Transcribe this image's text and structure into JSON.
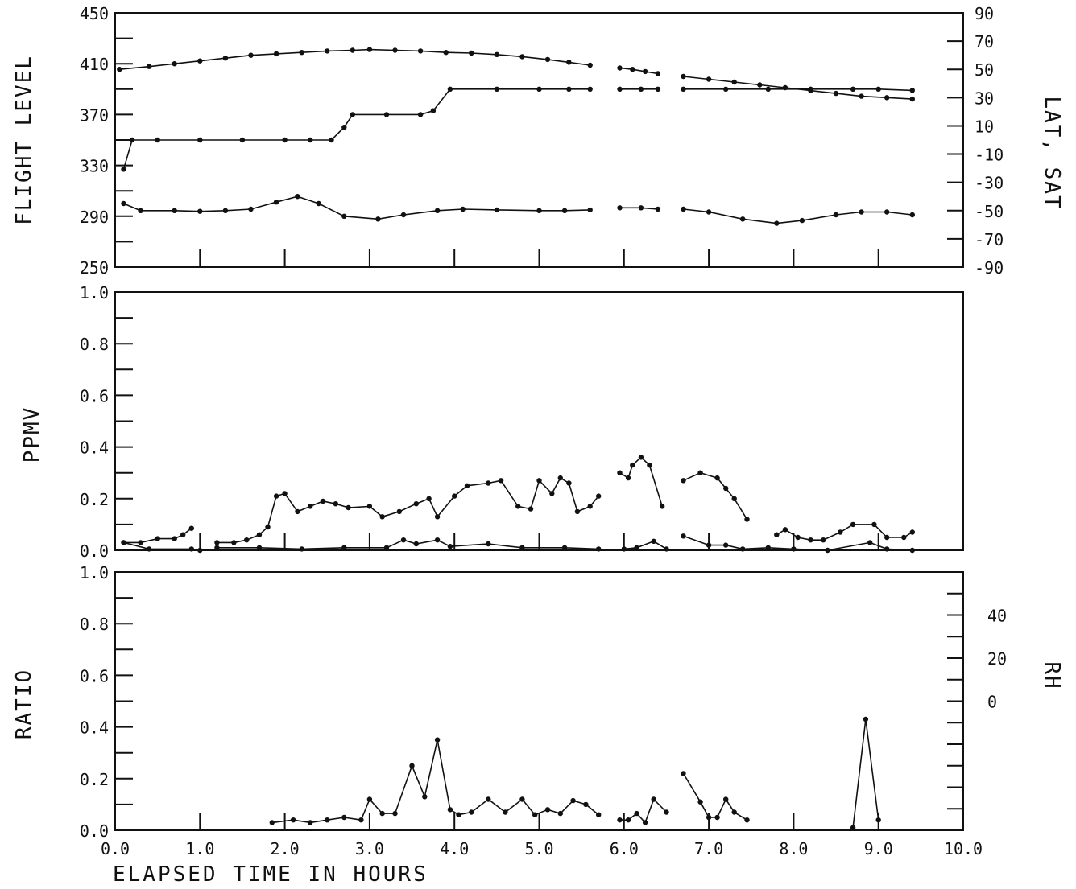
{
  "chart_data": [
    {
      "type": "line",
      "panel": "top",
      "ylabel": "FLIGHT LEVEL",
      "y2label": "LAT, SAT",
      "xlim": [
        0,
        10
      ],
      "ylim": [
        250,
        450
      ],
      "y2lim": [
        -90,
        90
      ],
      "yticks": [
        "250",
        "290",
        "330",
        "370",
        "410",
        "450"
      ],
      "y2ticks": [
        "-90",
        "-70",
        "-50",
        "-30",
        "-10",
        "10",
        "30",
        "50",
        "70",
        "90"
      ],
      "series": [
        {
          "axis": "y2",
          "segments": [
            [
              [
                0.05,
                50
              ],
              [
                0.4,
                52
              ],
              [
                0.7,
                54
              ],
              [
                1.0,
                56
              ],
              [
                1.3,
                58
              ],
              [
                1.6,
                60
              ],
              [
                1.9,
                61
              ],
              [
                2.2,
                62
              ],
              [
                2.5,
                63
              ],
              [
                2.8,
                63.5
              ],
              [
                3.0,
                64
              ],
              [
                3.3,
                63.5
              ],
              [
                3.6,
                63
              ],
              [
                3.9,
                62
              ],
              [
                4.2,
                61.5
              ],
              [
                4.5,
                60.5
              ],
              [
                4.8,
                59
              ],
              [
                5.1,
                57
              ],
              [
                5.35,
                55
              ],
              [
                5.6,
                53
              ]
            ],
            [
              [
                5.95,
                51
              ],
              [
                6.1,
                50
              ],
              [
                6.25,
                48.5
              ],
              [
                6.4,
                47
              ]
            ],
            [
              [
                6.7,
                45
              ],
              [
                7.0,
                43
              ],
              [
                7.3,
                41
              ],
              [
                7.6,
                39
              ],
              [
                7.9,
                37
              ],
              [
                8.2,
                35
              ],
              [
                8.5,
                33
              ],
              [
                8.8,
                31
              ],
              [
                9.1,
                30
              ],
              [
                9.4,
                29
              ]
            ]
          ]
        },
        {
          "axis": "y1",
          "segments": [
            [
              [
                0.1,
                327
              ],
              [
                0.2,
                350
              ],
              [
                0.5,
                350
              ],
              [
                1.0,
                350
              ],
              [
                1.5,
                350
              ],
              [
                2.0,
                350
              ],
              [
                2.3,
                350
              ],
              [
                2.55,
                350
              ],
              [
                2.7,
                360
              ],
              [
                2.8,
                370
              ],
              [
                3.2,
                370
              ],
              [
                3.6,
                370
              ],
              [
                3.75,
                373
              ],
              [
                3.95,
                390
              ],
              [
                4.5,
                390
              ],
              [
                5.0,
                390
              ],
              [
                5.35,
                390
              ],
              [
                5.6,
                390
              ]
            ],
            [
              [
                5.95,
                390
              ],
              [
                6.2,
                390
              ],
              [
                6.4,
                390
              ]
            ],
            [
              [
                6.7,
                390
              ],
              [
                7.2,
                390
              ],
              [
                7.7,
                390
              ],
              [
                8.2,
                390
              ],
              [
                8.7,
                390
              ],
              [
                9.0,
                390
              ],
              [
                9.4,
                389
              ]
            ]
          ]
        },
        {
          "axis": "y2",
          "segments": [
            [
              [
                0.1,
                -45
              ],
              [
                0.3,
                -50
              ],
              [
                0.7,
                -50
              ],
              [
                1.0,
                -50.5
              ],
              [
                1.3,
                -50
              ],
              [
                1.6,
                -49
              ],
              [
                1.9,
                -44
              ],
              [
                2.15,
                -40
              ],
              [
                2.4,
                -45
              ],
              [
                2.7,
                -54
              ],
              [
                3.1,
                -56
              ],
              [
                3.4,
                -53
              ],
              [
                3.8,
                -50
              ],
              [
                4.1,
                -49
              ],
              [
                4.5,
                -49.5
              ],
              [
                5.0,
                -50
              ],
              [
                5.3,
                -50
              ],
              [
                5.6,
                -49.5
              ]
            ],
            [
              [
                5.95,
                -48
              ],
              [
                6.2,
                -48
              ],
              [
                6.4,
                -49
              ]
            ],
            [
              [
                6.7,
                -49
              ],
              [
                7.0,
                -51
              ],
              [
                7.4,
                -56
              ],
              [
                7.8,
                -59
              ],
              [
                8.1,
                -57
              ],
              [
                8.5,
                -53
              ],
              [
                8.8,
                -51
              ],
              [
                9.1,
                -51
              ],
              [
                9.4,
                -53
              ]
            ]
          ]
        }
      ]
    },
    {
      "type": "line",
      "panel": "middle",
      "ylabel": "PPMV",
      "xlim": [
        0,
        10
      ],
      "ylim": [
        0,
        1
      ],
      "yticks": [
        "0.0",
        "0.2",
        "0.4",
        "0.6",
        "0.8",
        "1.0"
      ],
      "series": [
        {
          "segments": [
            [
              [
                0.1,
                0.03
              ],
              [
                0.3,
                0.03
              ],
              [
                0.5,
                0.045
              ],
              [
                0.7,
                0.045
              ],
              [
                0.8,
                0.06
              ],
              [
                0.9,
                0.085
              ]
            ],
            [
              [
                1.2,
                0.03
              ],
              [
                1.4,
                0.03
              ],
              [
                1.55,
                0.04
              ],
              [
                1.7,
                0.06
              ],
              [
                1.8,
                0.09
              ],
              [
                1.9,
                0.21
              ],
              [
                2.0,
                0.22
              ],
              [
                2.15,
                0.15
              ],
              [
                2.3,
                0.17
              ],
              [
                2.45,
                0.19
              ],
              [
                2.6,
                0.18
              ],
              [
                2.75,
                0.165
              ],
              [
                3.0,
                0.17
              ],
              [
                3.15,
                0.13
              ],
              [
                3.35,
                0.15
              ],
              [
                3.55,
                0.18
              ],
              [
                3.7,
                0.2
              ],
              [
                3.8,
                0.13
              ],
              [
                4.0,
                0.21
              ],
              [
                4.15,
                0.25
              ],
              [
                4.4,
                0.26
              ],
              [
                4.55,
                0.27
              ],
              [
                4.75,
                0.17
              ],
              [
                4.9,
                0.16
              ],
              [
                5.0,
                0.27
              ],
              [
                5.15,
                0.22
              ],
              [
                5.25,
                0.28
              ],
              [
                5.35,
                0.26
              ],
              [
                5.45,
                0.15
              ],
              [
                5.6,
                0.17
              ],
              [
                5.7,
                0.21
              ]
            ],
            [
              [
                5.95,
                0.3
              ],
              [
                6.05,
                0.28
              ],
              [
                6.1,
                0.33
              ],
              [
                6.2,
                0.36
              ],
              [
                6.3,
                0.33
              ],
              [
                6.45,
                0.17
              ]
            ],
            [
              [
                6.7,
                0.27
              ],
              [
                6.9,
                0.3
              ],
              [
                7.1,
                0.28
              ],
              [
                7.2,
                0.24
              ],
              [
                7.3,
                0.2
              ],
              [
                7.45,
                0.12
              ]
            ],
            [
              [
                7.8,
                0.06
              ],
              [
                7.9,
                0.08
              ],
              [
                8.05,
                0.05
              ],
              [
                8.2,
                0.04
              ],
              [
                8.35,
                0.04
              ],
              [
                8.55,
                0.07
              ],
              [
                8.7,
                0.1
              ],
              [
                8.95,
                0.1
              ],
              [
                9.1,
                0.05
              ],
              [
                9.3,
                0.05
              ],
              [
                9.4,
                0.07
              ]
            ]
          ]
        },
        {
          "segments": [
            [
              [
                0.1,
                0.03
              ],
              [
                0.4,
                0.005
              ],
              [
                0.9,
                0.005
              ],
              [
                1.0,
                0.0
              ]
            ],
            [
              [
                1.2,
                0.01
              ],
              [
                1.7,
                0.01
              ],
              [
                2.2,
                0.005
              ],
              [
                2.7,
                0.01
              ],
              [
                3.2,
                0.01
              ],
              [
                3.4,
                0.04
              ],
              [
                3.55,
                0.025
              ],
              [
                3.8,
                0.04
              ],
              [
                3.95,
                0.015
              ],
              [
                4.4,
                0.025
              ],
              [
                4.8,
                0.01
              ],
              [
                5.3,
                0.01
              ],
              [
                5.7,
                0.005
              ]
            ],
            [
              [
                6.0,
                0.005
              ],
              [
                6.15,
                0.01
              ],
              [
                6.35,
                0.035
              ],
              [
                6.5,
                0.005
              ]
            ],
            [
              [
                6.7,
                0.055
              ],
              [
                7.0,
                0.02
              ],
              [
                7.2,
                0.02
              ],
              [
                7.4,
                0.005
              ],
              [
                7.7,
                0.01
              ],
              [
                8.0,
                0.005
              ],
              [
                8.4,
                0.0
              ],
              [
                8.9,
                0.03
              ],
              [
                9.1,
                0.005
              ],
              [
                9.4,
                0.0
              ]
            ]
          ]
        }
      ]
    },
    {
      "type": "line",
      "panel": "bottom",
      "ylabel": "RATIO",
      "y2label": "RH",
      "xlabel": "ELAPSED TIME IN HOURS",
      "xlim": [
        0,
        10
      ],
      "ylim": [
        0,
        1
      ],
      "y2lim": [
        -60,
        60
      ],
      "yticks": [
        "0.0",
        "0.2",
        "0.4",
        "0.6",
        "0.8",
        "1.0"
      ],
      "y2ticks": [
        "0",
        "20",
        "40"
      ],
      "xticks": [
        "0.0",
        "1.0",
        "2.0",
        "3.0",
        "4.0",
        "5.0",
        "6.0",
        "7.0",
        "8.0",
        "9.0",
        "10.0"
      ],
      "series": [
        {
          "segments": [
            [
              [
                1.85,
                0.03
              ],
              [
                2.1,
                0.04
              ],
              [
                2.3,
                0.03
              ],
              [
                2.5,
                0.04
              ],
              [
                2.7,
                0.05
              ],
              [
                2.9,
                0.04
              ],
              [
                3.0,
                0.12
              ],
              [
                3.15,
                0.065
              ],
              [
                3.3,
                0.065
              ],
              [
                3.5,
                0.25
              ],
              [
                3.65,
                0.13
              ],
              [
                3.8,
                0.35
              ],
              [
                3.95,
                0.08
              ],
              [
                4.05,
                0.06
              ],
              [
                4.2,
                0.07
              ],
              [
                4.4,
                0.12
              ],
              [
                4.6,
                0.07
              ],
              [
                4.8,
                0.12
              ],
              [
                4.95,
                0.06
              ],
              [
                5.1,
                0.08
              ],
              [
                5.25,
                0.065
              ],
              [
                5.4,
                0.115
              ],
              [
                5.55,
                0.1
              ],
              [
                5.7,
                0.06
              ]
            ],
            [
              [
                5.95,
                0.04
              ],
              [
                6.05,
                0.04
              ],
              [
                6.15,
                0.065
              ],
              [
                6.25,
                0.03
              ],
              [
                6.35,
                0.12
              ],
              [
                6.5,
                0.07
              ]
            ],
            [
              [
                6.7,
                0.22
              ],
              [
                6.9,
                0.11
              ],
              [
                7.0,
                0.05
              ],
              [
                7.1,
                0.05
              ],
              [
                7.2,
                0.12
              ],
              [
                7.3,
                0.07
              ],
              [
                7.45,
                0.04
              ]
            ],
            [
              [
                8.7,
                0.01
              ],
              [
                8.85,
                0.43
              ],
              [
                9.0,
                0.04
              ]
            ]
          ]
        }
      ]
    }
  ]
}
